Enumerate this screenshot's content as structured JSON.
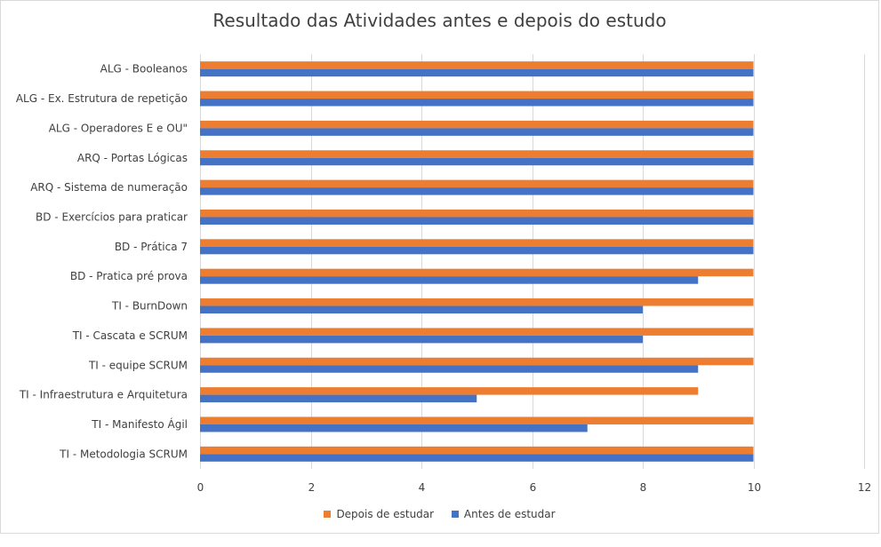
{
  "chart_data": {
    "type": "bar",
    "orientation": "horizontal",
    "title": "Resultado das Atividades antes e depois do estudo",
    "categories": [
      "ALG - Booleanos",
      "ALG - Ex. Estrutura de repetição",
      "ALG - Operadores E e OU\"",
      "ARQ - Portas Lógicas",
      "ARQ - Sistema de numeração",
      "BD - Exercícios para praticar",
      "BD - Prática 7",
      "BD - Pratica pré prova",
      "TI - BurnDown",
      "TI - Cascata e SCRUM",
      "TI - equipe SCRUM",
      "TI - Infraestrutura e Arquitetura",
      "TI - Manifesto Ágil",
      "TI - Metodologia SCRUM"
    ],
    "series": [
      {
        "name": "Depois de estudar",
        "color": "#ED7D31",
        "values": [
          10,
          10,
          10,
          10,
          10,
          10,
          10,
          10,
          10,
          10,
          10,
          9,
          10,
          10
        ]
      },
      {
        "name": "Antes de estudar",
        "color": "#4472C4",
        "values": [
          10,
          10,
          10,
          10,
          10,
          10,
          10,
          9,
          8,
          8,
          9,
          5,
          7,
          10
        ]
      }
    ],
    "xlim": [
      0,
      12
    ],
    "xticks": [
      "0",
      "2",
      "4",
      "6",
      "8",
      "10",
      "12"
    ],
    "grid": true,
    "legend_position": "bottom"
  }
}
